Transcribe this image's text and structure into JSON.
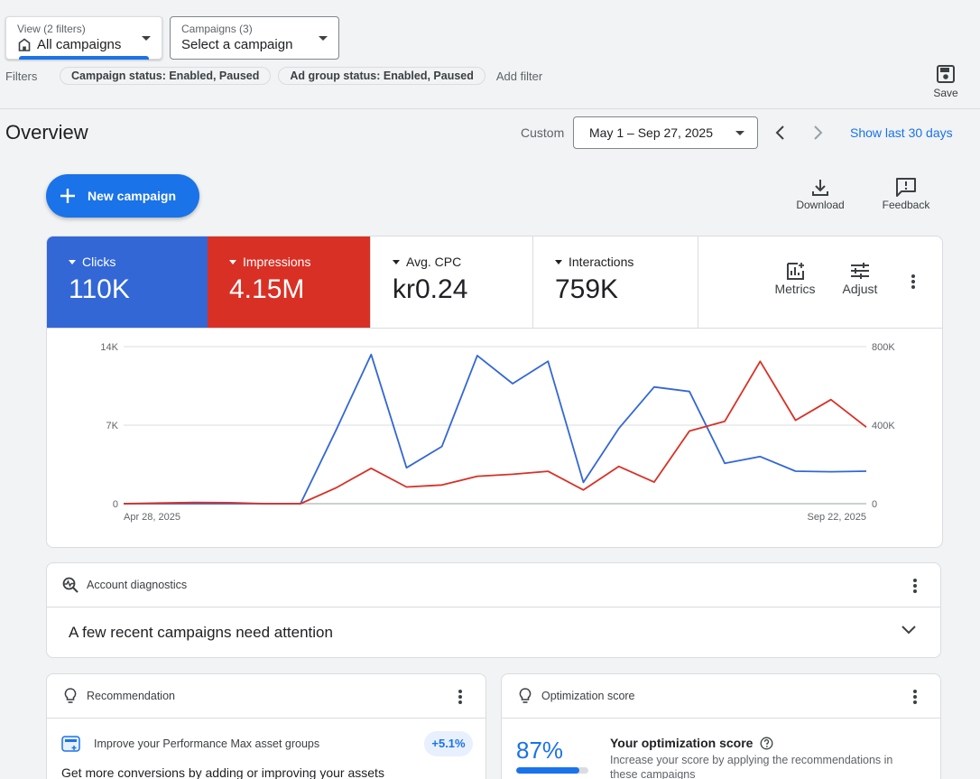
{
  "view_picker": {
    "small": "View (2 filters)",
    "value": "All campaigns"
  },
  "campaign_picker": {
    "small": "Campaigns (3)",
    "value": "Select a campaign"
  },
  "filters": {
    "label": "Filters",
    "chips": [
      "Campaign status: Enabled, Paused",
      "Ad group status: Enabled, Paused"
    ],
    "add_filter": "Add filter"
  },
  "save": {
    "label": "Save",
    "icon": "save-icon"
  },
  "overview": {
    "title": "Overview",
    "custom_label": "Custom",
    "date_range": "May 1 – Sep 27, 2025",
    "show_last": "Show last 30 days"
  },
  "new_campaign": {
    "label": "New campaign",
    "icon": "plus-icon"
  },
  "actions": {
    "download": "Download",
    "feedback": "Feedback"
  },
  "scorecards": [
    {
      "name": "Clicks",
      "value": "110K",
      "color": "#3367d6"
    },
    {
      "name": "Impressions",
      "value": "4.15M",
      "color": "#d93025"
    },
    {
      "name": "Avg. CPC",
      "value": "kr0.24"
    },
    {
      "name": "Interactions",
      "value": "759K"
    }
  ],
  "tools": {
    "metrics": "Metrics",
    "adjust": "Adjust"
  },
  "chart_data": {
    "type": "line",
    "x_start_label": "Apr 28, 2025",
    "x_end_label": "Sep 22, 2025",
    "x": [
      "Apr 28, 2025",
      "May 5, 2025",
      "May 12, 2025",
      "May 19, 2025",
      "May 26, 2025",
      "Jun 2, 2025",
      "Jun 9, 2025",
      "Jun 16, 2025",
      "Jun 23, 2025",
      "Jun 30, 2025",
      "Jul 7, 2025",
      "Jul 14, 2025",
      "Jul 21, 2025",
      "Jul 28, 2025",
      "Aug 4, 2025",
      "Aug 11, 2025",
      "Aug 18, 2025",
      "Aug 25, 2025",
      "Sep 1, 2025",
      "Sep 8, 2025",
      "Sep 15, 2025",
      "Sep 22, 2025"
    ],
    "y_left_ticks": [
      "14K",
      "7K",
      "0"
    ],
    "y_right_ticks": [
      "800K",
      "400K",
      "0"
    ],
    "y_left_lim": [
      0,
      14000
    ],
    "y_right_lim": [
      0,
      800000
    ],
    "grid": true,
    "series": [
      {
        "name": "Clicks",
        "axis": "left",
        "color": "#3367d6",
        "values": [
          0,
          0,
          0,
          0,
          0,
          0,
          6500,
          13300,
          3200,
          5100,
          13200,
          10700,
          12700,
          1900,
          6700,
          10400,
          10000,
          3600,
          4200,
          2900,
          2850,
          2900
        ]
      },
      {
        "name": "Impressions",
        "axis": "left_scaled_right",
        "color": "#d93025",
        "values": [
          0,
          3000,
          6000,
          5000,
          0,
          0,
          80000,
          180000,
          85000,
          95000,
          140000,
          150000,
          165000,
          70000,
          190000,
          110000,
          370000,
          420000,
          725000,
          425000,
          530000,
          390000
        ]
      }
    ]
  },
  "diagnostics": {
    "title": "Account diagnostics",
    "message": "A few recent campaigns need attention"
  },
  "recommendation": {
    "title": "Recommendation",
    "item": "Improve your Performance Max asset groups",
    "badge": "+5.1%",
    "desc": "Get more conversions by adding or improving your assets"
  },
  "optimization": {
    "title": "Optimization score",
    "percent": "87%",
    "percent_value": 0.87,
    "heading": "Your optimization score",
    "desc": "Increase your score by applying the recommendations in these campaigns"
  }
}
